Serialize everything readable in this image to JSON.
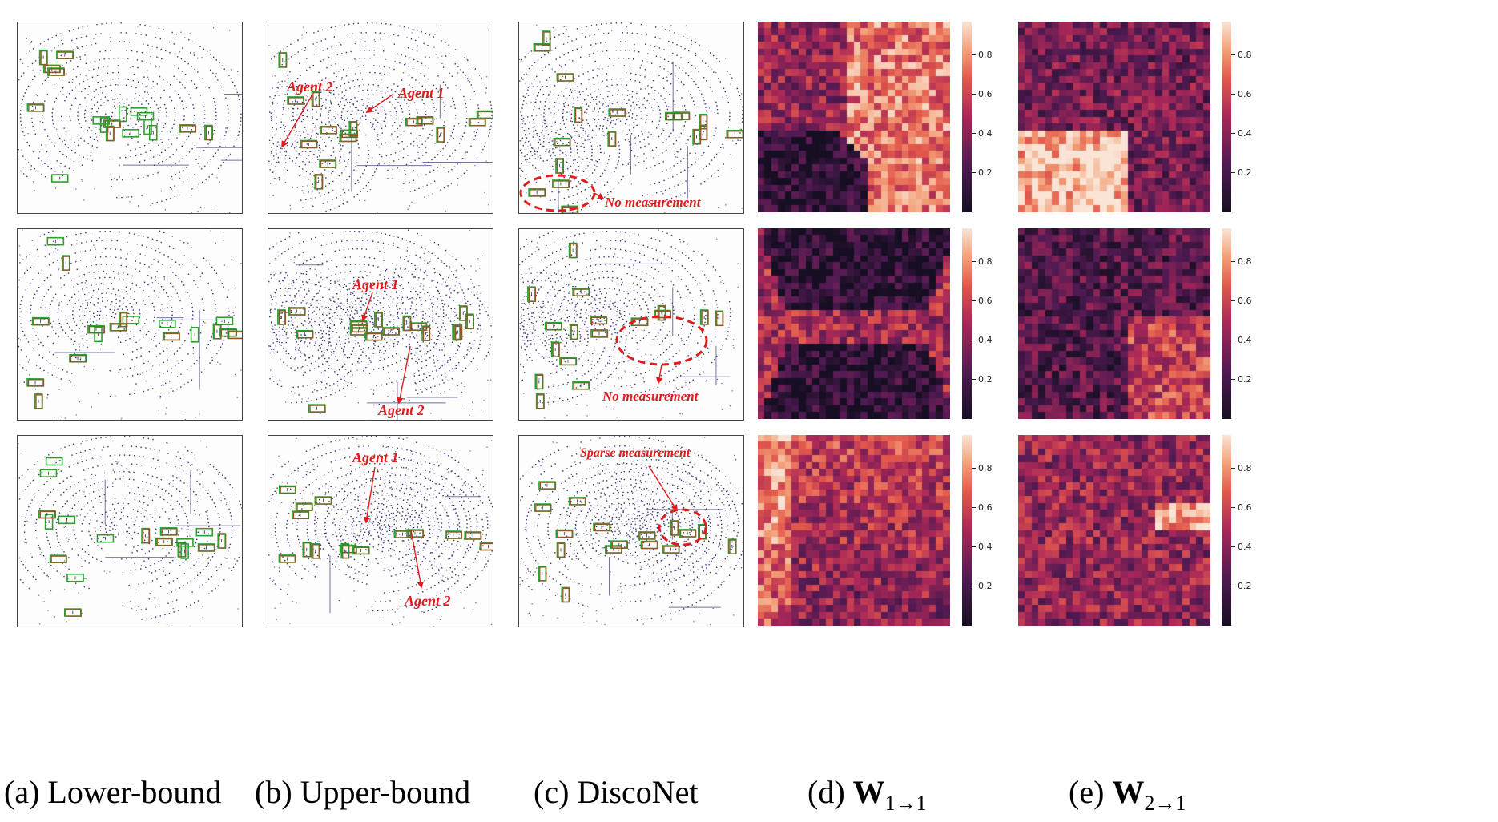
{
  "figure": {
    "captions": [
      {
        "prefix": "(a)",
        "text": "Lower-bound"
      },
      {
        "prefix": "(b)",
        "text": "Upper-bound"
      },
      {
        "prefix": "(c)",
        "text": "DiscoNet"
      },
      {
        "prefix": "(d)",
        "symbol": "W",
        "sub": "1→1"
      },
      {
        "prefix": "(e)",
        "symbol": "W",
        "sub": "2→1"
      }
    ],
    "annotations": {
      "row1_b_agent2": "Agent 2",
      "row1_b_agent1": "Agent 1",
      "row1_c_note": "No measurement",
      "row2_b_agent1": "Agent 1",
      "row2_b_agent2": "Agent 2",
      "row2_c_note": "No measurement",
      "row3_b_agent1": "Agent 1",
      "row3_b_agent2": "Agent 2",
      "row3_c_note": "Sparse measurement"
    },
    "colorbar_ticks": [
      "0.2",
      "0.4",
      "0.6",
      "0.8"
    ],
    "colors": {
      "annotation": "#e31a1c",
      "point_cloud": "#3b3a7a",
      "box_green": "#2ca02c",
      "box_brown": "#8c5a2b",
      "heatmap_low": "#160e22",
      "heatmap_mid": "#b0334f",
      "heatmap_high": "#f9e1cf"
    },
    "heatmap_colormap": "rocket"
  }
}
